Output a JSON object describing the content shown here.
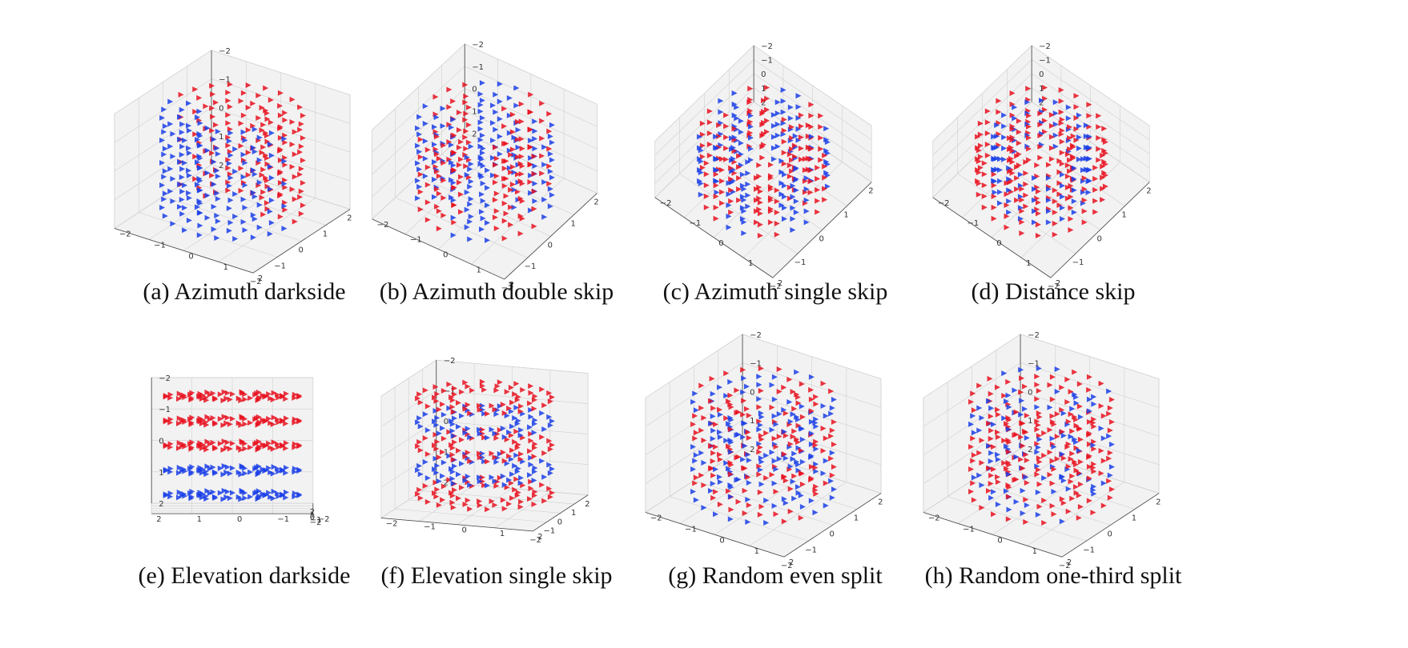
{
  "colors": {
    "primary": "#e8101e",
    "secondary": "#1a3ee8",
    "pane": "#f2f2f2",
    "grid": "#d0d0d0"
  },
  "icons": {
    "marker": "triangle-right-marker"
  },
  "panels": [
    {
      "label": "(a)",
      "caption": "(a) Azimuth darkside",
      "view": "iso",
      "split": "azimuth-half",
      "xticks": [
        "2",
        "1",
        "0",
        "−1",
        "−2"
      ],
      "yticks": [
        "−2",
        "−1",
        "0",
        "1",
        "2"
      ],
      "zticks": [
        "−2",
        "−1",
        "0",
        "1",
        "2"
      ]
    },
    {
      "label": "(b)",
      "caption": "(b) Azimuth double skip",
      "view": "high",
      "split": "azimuth-double",
      "xticks": [
        "2",
        "1",
        "0",
        "−1",
        "−2"
      ],
      "yticks": [
        "−2",
        "−1",
        "0",
        "1",
        "2"
      ],
      "zticks": [
        "−2",
        "−1",
        "0",
        "1",
        "2"
      ]
    },
    {
      "label": "(c)",
      "caption": "(c) Azimuth single skip",
      "view": "top",
      "split": "azimuth-single",
      "xticks": [
        "2",
        "1",
        "0",
        "−1",
        "−2"
      ],
      "yticks": [
        "−2",
        "−1",
        "0",
        "1",
        "2"
      ],
      "zticks": [
        "−2",
        "−1",
        "0",
        "1",
        "2"
      ]
    },
    {
      "label": "(d)",
      "caption": "(d) Distance skip",
      "view": "top",
      "split": "distance",
      "xticks": [
        "2",
        "1",
        "0",
        "−1",
        "−2"
      ],
      "yticks": [
        "−2",
        "−1",
        "0",
        "1",
        "2"
      ],
      "zticks": [
        "−2",
        "−1",
        "0",
        "1",
        "2"
      ]
    },
    {
      "label": "(e)",
      "caption": "(e) Elevation darkside",
      "view": "side",
      "split": "elevation-half",
      "xticks": [
        "2",
        "1",
        "0",
        "−1",
        "−2"
      ],
      "yticks": [
        "2",
        "1",
        "0",
        "−1",
        "−2"
      ],
      "zticks": [
        "−2",
        "−1",
        "0",
        "1",
        "2"
      ]
    },
    {
      "label": "(f)",
      "caption": "(f) Elevation single skip",
      "view": "low",
      "split": "elevation-single",
      "xticks": [
        "2",
        "1",
        "0",
        "−1",
        "−2"
      ],
      "yticks": [
        "−2",
        "−1",
        "0",
        "1",
        "2"
      ],
      "zticks": [
        "−2",
        "−1",
        "0",
        "1",
        "2"
      ]
    },
    {
      "label": "(g)",
      "caption": "(g) Random even split",
      "view": "iso",
      "split": "random-even",
      "xticks": [
        "2",
        "1",
        "0",
        "−1",
        "−2"
      ],
      "yticks": [
        "−2",
        "−1",
        "0",
        "1",
        "2"
      ],
      "zticks": [
        "−2",
        "−1",
        "0",
        "1",
        "2"
      ]
    },
    {
      "label": "(h)",
      "caption": "(h) Random one-third split",
      "view": "iso",
      "split": "random-third",
      "xticks": [
        "2",
        "1",
        "0",
        "−1",
        "−2"
      ],
      "yticks": [
        "−2",
        "−1",
        "0",
        "1",
        "2"
      ],
      "zticks": [
        "−2",
        "−1",
        "0",
        "1",
        "2"
      ]
    }
  ]
}
